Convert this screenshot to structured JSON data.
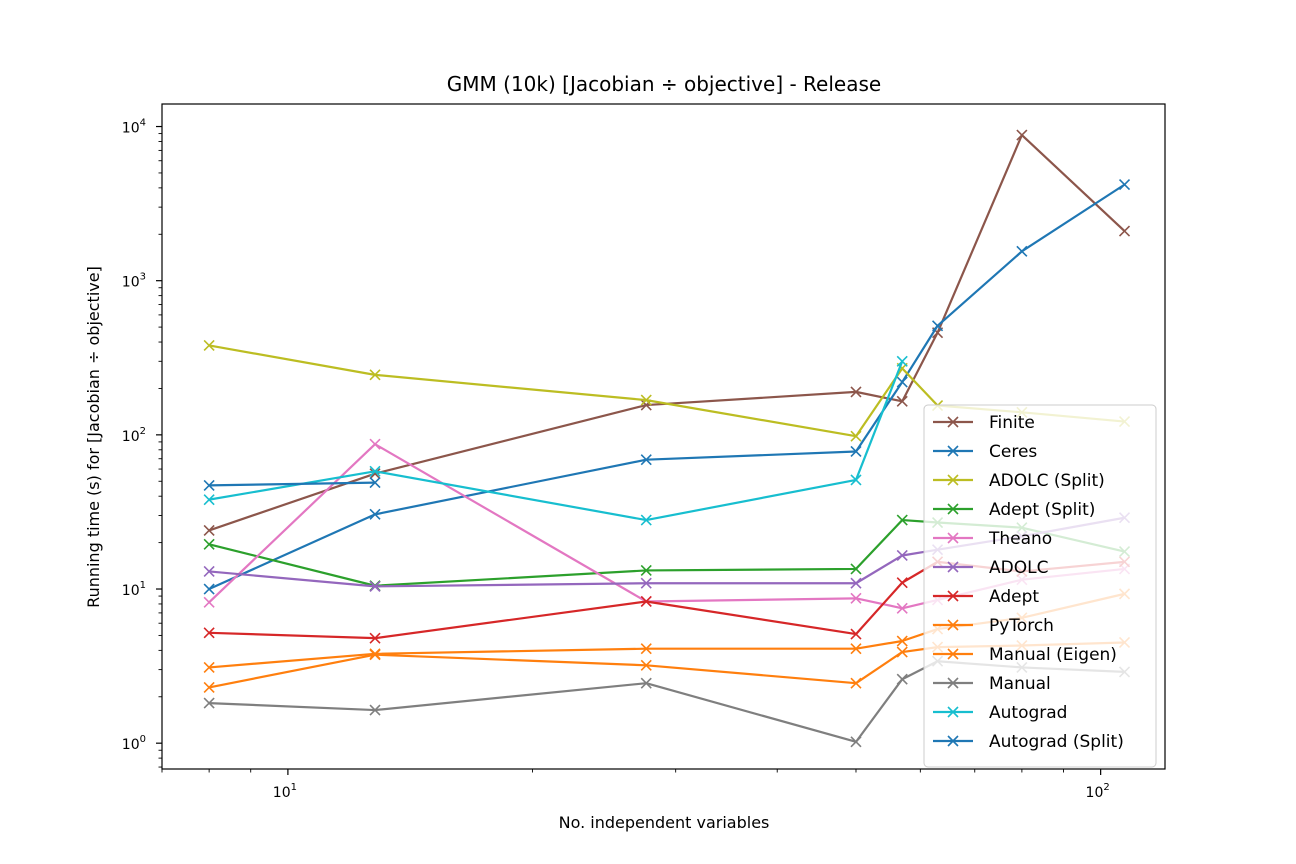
{
  "chart_data": {
    "type": "line",
    "title": "GMM (10k) [Jacobian ÷ objective] - Release",
    "xlabel": "No. independent variables",
    "ylabel": "Running time (s) for [Jacobian ÷ objective]",
    "xscale": "log",
    "yscale": "log",
    "xlim": [
      7.0,
      120.0
    ],
    "ylim": [
      0.68,
      14000
    ],
    "xticks_major": [
      {
        "value": 10,
        "label": "10",
        "sup": "1"
      },
      {
        "value": 100,
        "label": "10",
        "sup": "2"
      }
    ],
    "yticks_major": [
      {
        "value": 1,
        "label": "10",
        "sup": "0"
      },
      {
        "value": 10,
        "label": "10",
        "sup": "1"
      },
      {
        "value": 100,
        "label": "10",
        "sup": "2"
      },
      {
        "value": 1000,
        "label": "10",
        "sup": "3"
      },
      {
        "value": 10000,
        "label": "10",
        "sup": "4"
      }
    ],
    "legend_position": "lower-right",
    "marker": "x",
    "series": [
      {
        "name": "Finite",
        "color": "#8c564b",
        "x": [
          8,
          12.8,
          27.6,
          50,
          57,
          63,
          80,
          107
        ],
        "y": [
          24,
          56,
          156,
          190,
          165,
          460,
          8800,
          2100
        ]
      },
      {
        "name": "Ceres",
        "color": "#1f77b4",
        "x": [
          8,
          12.8,
          27.6,
          50,
          57,
          63,
          80,
          107
        ],
        "y": [
          10,
          30.5,
          69,
          78,
          220,
          510,
          1550,
          4200
        ]
      },
      {
        "name": "ADOLC (Split)",
        "color": "#bcbd22",
        "x": [
          8,
          12.8,
          27.6,
          50,
          57,
          63,
          80,
          107
        ],
        "y": [
          380,
          245,
          168,
          98,
          270,
          155,
          140,
          122
        ]
      },
      {
        "name": "Adept (Split)",
        "color": "#2ca02c",
        "x": [
          8,
          12.8,
          27.6,
          50,
          57,
          63,
          80,
          107
        ],
        "y": [
          19.5,
          10.5,
          13.2,
          13.5,
          28,
          27,
          25,
          17.5
        ]
      },
      {
        "name": "Theano",
        "color": "#e377c2",
        "x": [
          8,
          12.8,
          27.6,
          50,
          57,
          63,
          80,
          107
        ],
        "y": [
          8.2,
          87,
          8.3,
          8.7,
          7.5,
          8.5,
          11.5,
          13.5
        ]
      },
      {
        "name": "ADOLC",
        "color": "#9467bd",
        "x": [
          8,
          12.8,
          27.6,
          50,
          57,
          63,
          80,
          107
        ],
        "y": [
          13,
          10.4,
          10.9,
          10.9,
          16.5,
          18,
          22,
          29
        ]
      },
      {
        "name": "Adept",
        "color": "#d62728",
        "x": [
          8,
          12.8,
          27.6,
          50,
          57,
          63,
          80,
          107
        ],
        "y": [
          5.2,
          4.8,
          8.3,
          5.1,
          11,
          15,
          13,
          15
        ]
      },
      {
        "name": "PyTorch",
        "color": "#ff7f0e",
        "x": [
          8,
          12.8,
          27.6,
          50,
          57,
          63,
          80,
          107
        ],
        "y": [
          3.1,
          3.8,
          4.1,
          4.1,
          4.6,
          5.5,
          6.5,
          9.3
        ]
      },
      {
        "name": "Manual (Eigen)",
        "color": "#ff7f0e",
        "x": [
          8,
          12.8,
          27.6,
          50,
          57,
          63,
          80,
          107
        ],
        "y": [
          2.3,
          3.75,
          3.2,
          2.45,
          3.9,
          4.2,
          4.3,
          4.5
        ]
      },
      {
        "name": "Manual",
        "color": "#7f7f7f",
        "x": [
          8,
          12.8,
          27.6,
          50,
          57,
          63,
          80,
          107
        ],
        "y": [
          1.82,
          1.64,
          2.45,
          1.02,
          2.6,
          3.4,
          3.1,
          2.9
        ]
      },
      {
        "name": "Autograd",
        "color": "#17becf",
        "x": [
          8,
          12.8,
          27.6,
          50,
          57
        ],
        "y": [
          38,
          58,
          28,
          51,
          300
        ]
      },
      {
        "name": "Autograd (Split)",
        "color": "#1f77b4",
        "x": [
          8,
          12.8
        ],
        "y": [
          47,
          49
        ]
      }
    ]
  }
}
